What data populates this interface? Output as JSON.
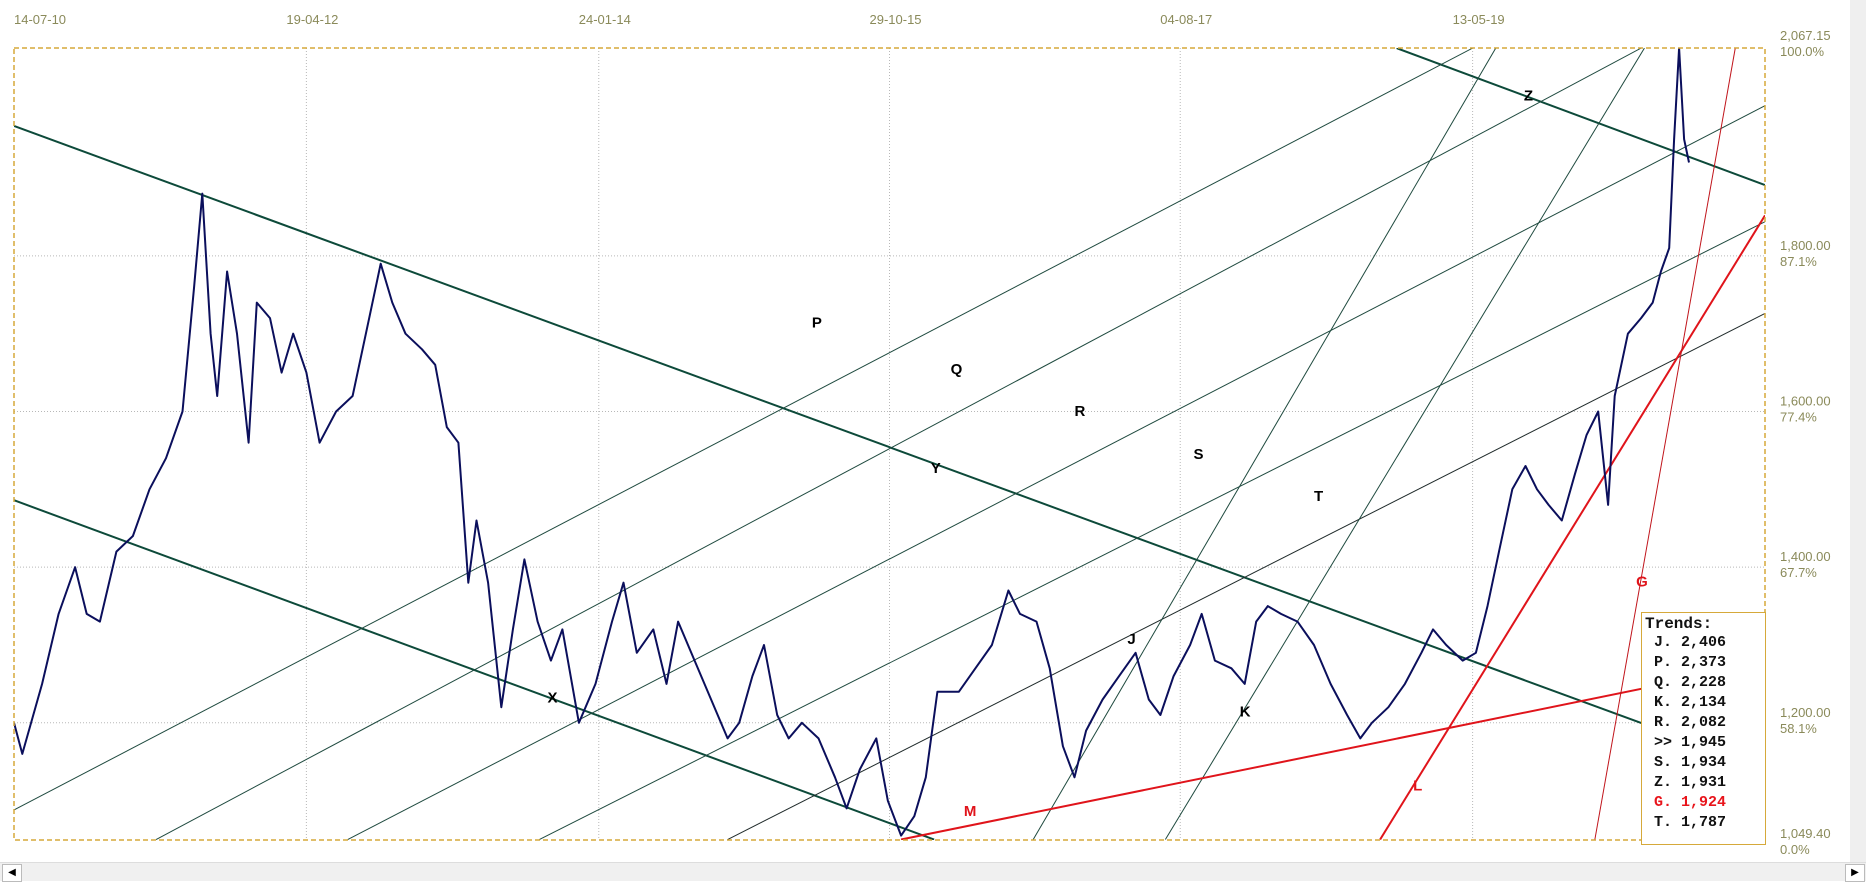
{
  "chart_data": {
    "type": "line",
    "title": "",
    "x_ticks": [
      "14-07-10",
      "19-04-12",
      "24-01-14",
      "29-10-15",
      "04-08-17",
      "13-05-19"
    ],
    "x_tick_years": [
      2010.53,
      2012.3,
      2014.07,
      2015.83,
      2017.59,
      2019.36
    ],
    "xlim": [
      2010.53,
      2021.13
    ],
    "ylim": [
      1049.4,
      2067.15
    ],
    "y_ticks": [
      {
        "value": "2,067.15",
        "pct": "100.0%",
        "v": 2067.15
      },
      {
        "value": "1,800.00",
        "pct": "87.1%",
        "v": 1800
      },
      {
        "value": "1,600.00",
        "pct": "77.4%",
        "v": 1600
      },
      {
        "value": "1,400.00",
        "pct": "67.7%",
        "v": 1400
      },
      {
        "value": "1,200.00",
        "pct": "58.1%",
        "v": 1200
      },
      {
        "value": "1,049.40",
        "pct": "0.0%",
        "v": 1049.4
      }
    ],
    "grid": true,
    "series": [
      {
        "name": "price",
        "color": "#0b0f5c",
        "points": [
          [
            2010.53,
            1200
          ],
          [
            2010.58,
            1160
          ],
          [
            2010.7,
            1250
          ],
          [
            2010.8,
            1340
          ],
          [
            2010.9,
            1400
          ],
          [
            2010.97,
            1340
          ],
          [
            2011.05,
            1330
          ],
          [
            2011.15,
            1420
          ],
          [
            2011.25,
            1440
          ],
          [
            2011.35,
            1500
          ],
          [
            2011.45,
            1540
          ],
          [
            2011.55,
            1600
          ],
          [
            2011.62,
            1760
          ],
          [
            2011.67,
            1880
          ],
          [
            2011.72,
            1700
          ],
          [
            2011.76,
            1620
          ],
          [
            2011.82,
            1780
          ],
          [
            2011.88,
            1700
          ],
          [
            2011.95,
            1560
          ],
          [
            2012.0,
            1740
          ],
          [
            2012.08,
            1720
          ],
          [
            2012.15,
            1650
          ],
          [
            2012.22,
            1700
          ],
          [
            2012.3,
            1650
          ],
          [
            2012.38,
            1560
          ],
          [
            2012.48,
            1600
          ],
          [
            2012.58,
            1620
          ],
          [
            2012.68,
            1720
          ],
          [
            2012.75,
            1790
          ],
          [
            2012.82,
            1740
          ],
          [
            2012.9,
            1700
          ],
          [
            2013.0,
            1680
          ],
          [
            2013.08,
            1660
          ],
          [
            2013.15,
            1580
          ],
          [
            2013.22,
            1560
          ],
          [
            2013.28,
            1380
          ],
          [
            2013.33,
            1460
          ],
          [
            2013.4,
            1380
          ],
          [
            2013.48,
            1220
          ],
          [
            2013.55,
            1320
          ],
          [
            2013.62,
            1410
          ],
          [
            2013.7,
            1330
          ],
          [
            2013.78,
            1280
          ],
          [
            2013.85,
            1320
          ],
          [
            2013.95,
            1200
          ],
          [
            2014.05,
            1250
          ],
          [
            2014.15,
            1330
          ],
          [
            2014.22,
            1380
          ],
          [
            2014.3,
            1290
          ],
          [
            2014.4,
            1320
          ],
          [
            2014.48,
            1250
          ],
          [
            2014.55,
            1330
          ],
          [
            2014.65,
            1280
          ],
          [
            2014.75,
            1230
          ],
          [
            2014.85,
            1180
          ],
          [
            2014.92,
            1200
          ],
          [
            2015.0,
            1260
          ],
          [
            2015.07,
            1300
          ],
          [
            2015.15,
            1210
          ],
          [
            2015.22,
            1180
          ],
          [
            2015.3,
            1200
          ],
          [
            2015.4,
            1180
          ],
          [
            2015.5,
            1130
          ],
          [
            2015.57,
            1090
          ],
          [
            2015.65,
            1140
          ],
          [
            2015.75,
            1180
          ],
          [
            2015.82,
            1100
          ],
          [
            2015.9,
            1055
          ],
          [
            2015.98,
            1080
          ],
          [
            2016.05,
            1130
          ],
          [
            2016.12,
            1240
          ],
          [
            2016.25,
            1240
          ],
          [
            2016.35,
            1270
          ],
          [
            2016.45,
            1300
          ],
          [
            2016.55,
            1370
          ],
          [
            2016.62,
            1340
          ],
          [
            2016.72,
            1330
          ],
          [
            2016.8,
            1270
          ],
          [
            2016.88,
            1170
          ],
          [
            2016.95,
            1130
          ],
          [
            2017.02,
            1190
          ],
          [
            2017.12,
            1230
          ],
          [
            2017.22,
            1260
          ],
          [
            2017.32,
            1290
          ],
          [
            2017.4,
            1230
          ],
          [
            2017.47,
            1210
          ],
          [
            2017.55,
            1260
          ],
          [
            2017.65,
            1300
          ],
          [
            2017.72,
            1340
          ],
          [
            2017.8,
            1280
          ],
          [
            2017.9,
            1270
          ],
          [
            2017.98,
            1250
          ],
          [
            2018.05,
            1330
          ],
          [
            2018.12,
            1350
          ],
          [
            2018.2,
            1340
          ],
          [
            2018.3,
            1330
          ],
          [
            2018.4,
            1300
          ],
          [
            2018.5,
            1250
          ],
          [
            2018.6,
            1210
          ],
          [
            2018.68,
            1180
          ],
          [
            2018.75,
            1200
          ],
          [
            2018.85,
            1220
          ],
          [
            2018.95,
            1250
          ],
          [
            2019.05,
            1290
          ],
          [
            2019.12,
            1320
          ],
          [
            2019.2,
            1300
          ],
          [
            2019.3,
            1280
          ],
          [
            2019.38,
            1290
          ],
          [
            2019.45,
            1350
          ],
          [
            2019.52,
            1420
          ],
          [
            2019.6,
            1500
          ],
          [
            2019.68,
            1530
          ],
          [
            2019.75,
            1500
          ],
          [
            2019.82,
            1480
          ],
          [
            2019.9,
            1460
          ],
          [
            2019.98,
            1520
          ],
          [
            2020.05,
            1570
          ],
          [
            2020.12,
            1600
          ],
          [
            2020.18,
            1480
          ],
          [
            2020.22,
            1620
          ],
          [
            2020.3,
            1700
          ],
          [
            2020.38,
            1720
          ],
          [
            2020.45,
            1740
          ],
          [
            2020.5,
            1780
          ],
          [
            2020.55,
            1810
          ],
          [
            2020.58,
            1950
          ],
          [
            2020.61,
            2067.15
          ],
          [
            2020.64,
            1950
          ],
          [
            2020.67,
            1920
          ]
        ]
      }
    ],
    "trend_lines": [
      {
        "name": "channel-upper",
        "color": "#0d4a3a",
        "width": 2,
        "from": [
          2010.53,
          1967
        ],
        "to": [
          2020.39,
          1199
        ]
      },
      {
        "name": "channel-lower",
        "color": "#0d4a3a",
        "width": 2,
        "from": [
          2010.53,
          1486
        ],
        "to": [
          2016.1,
          1050
        ]
      },
      {
        "name": "z-line",
        "color": "#0d4a3a",
        "width": 2,
        "from": [
          2018.9,
          2067
        ],
        "to": [
          2021.13,
          1891
        ]
      },
      {
        "name": "p-line",
        "color": "#1f4a3f",
        "width": 1,
        "from": [
          2010.53,
          1088
        ],
        "to": [
          2019.36,
          2067
        ]
      },
      {
        "name": "q-line",
        "color": "#1f4a3f",
        "width": 1,
        "from": [
          2011.39,
          1050
        ],
        "to": [
          2020.38,
          2067
        ]
      },
      {
        "name": "r-line",
        "color": "#1f4a3f",
        "width": 1,
        "from": [
          2012.55,
          1050
        ],
        "to": [
          2021.13,
          1993
        ]
      },
      {
        "name": "s-line",
        "color": "#1f4a3f",
        "width": 1,
        "from": [
          2013.71,
          1050
        ],
        "to": [
          2021.13,
          1844
        ]
      },
      {
        "name": "t-line",
        "color": "#1f2a2a",
        "width": 1,
        "from": [
          2014.85,
          1050
        ],
        "to": [
          2021.13,
          1726
        ]
      },
      {
        "name": "j-line",
        "color": "#1f4a3f",
        "width": 1,
        "from": [
          2016.7,
          1050
        ],
        "to": [
          2019.5,
          2067
        ]
      },
      {
        "name": "k-line",
        "color": "#1f4a3f",
        "width": 1,
        "from": [
          2017.5,
          1050
        ],
        "to": [
          2020.4,
          2067
        ]
      },
      {
        "name": "m-line",
        "color": "#e0141b",
        "width": 2,
        "from": [
          2015.9,
          1050
        ],
        "to": [
          2021.13,
          1276
        ]
      },
      {
        "name": "l-line",
        "color": "#e0141b",
        "width": 2,
        "from": [
          2018.8,
          1050
        ],
        "to": [
          2021.13,
          1852
        ]
      },
      {
        "name": "g-line",
        "color": "#c0141b",
        "width": 1,
        "from": [
          2020.1,
          1050
        ],
        "to": [
          2020.95,
          2067
        ]
      }
    ],
    "annotations": [
      {
        "text": "P",
        "at": [
          2015.36,
          1708
        ],
        "color": "#000"
      },
      {
        "text": "Q",
        "at": [
          2016.2,
          1648
        ],
        "color": "#000"
      },
      {
        "text": "R",
        "at": [
          2016.95,
          1594
        ],
        "color": "#000"
      },
      {
        "text": "S",
        "at": [
          2017.67,
          1539
        ],
        "color": "#000"
      },
      {
        "text": "T",
        "at": [
          2018.4,
          1485
        ],
        "color": "#000"
      },
      {
        "text": "Y",
        "at": [
          2016.08,
          1521
        ],
        "color": "#000"
      },
      {
        "text": "X",
        "at": [
          2013.76,
          1226
        ],
        "color": "#000"
      },
      {
        "text": "J",
        "at": [
          2017.27,
          1301
        ],
        "color": "#000"
      },
      {
        "text": "K",
        "at": [
          2017.95,
          1208
        ],
        "color": "#000"
      },
      {
        "text": "Z",
        "at": [
          2019.67,
          2000
        ],
        "color": "#000"
      },
      {
        "text": "M",
        "at": [
          2016.28,
          1080
        ],
        "color": "#e0141b"
      },
      {
        "text": "L",
        "at": [
          2019.0,
          1113
        ],
        "color": "#e0141b"
      },
      {
        "text": "G",
        "at": [
          2020.35,
          1375
        ],
        "color": "#e0141b"
      }
    ],
    "legend": {
      "title": "Trends:",
      "placement": "bottom-right",
      "rows": [
        {
          "text": "J. 2,406",
          "color": "#111"
        },
        {
          "text": "P. 2,373",
          "color": "#111"
        },
        {
          "text": "Q. 2,228",
          "color": "#111"
        },
        {
          "text": "K. 2,134",
          "color": "#111"
        },
        {
          "text": "R. 2,082",
          "color": "#111"
        },
        {
          "text": ">> 1,945",
          "color": "#111"
        },
        {
          "text": "S. 1,934",
          "color": "#111"
        },
        {
          "text": "Z. 1,931",
          "color": "#111"
        },
        {
          "text": "G. 1,924",
          "color": "#e8141b"
        },
        {
          "text": "T. 1,787",
          "color": "#111"
        }
      ]
    }
  },
  "scrollbar": {
    "left_arrow": "◀",
    "right_arrow": "▶"
  },
  "colors": {
    "frame": "#d6a93a",
    "axis_text": "#8a8a5a",
    "grid": "#b8b8b8"
  }
}
